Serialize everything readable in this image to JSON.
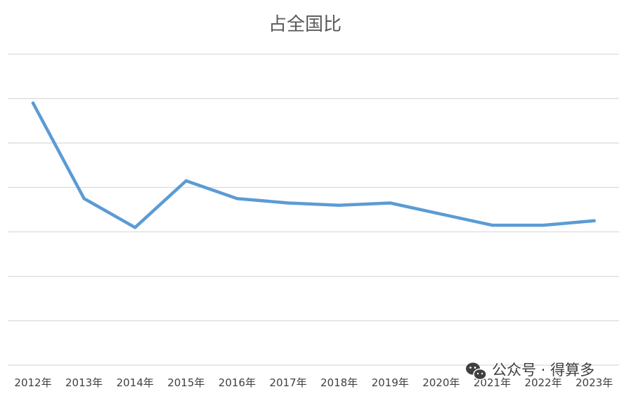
{
  "chart_data": {
    "type": "line",
    "title": "占全国比",
    "categories": [
      "2012年",
      "2013年",
      "2014年",
      "2015年",
      "2016年",
      "2017年",
      "2018年",
      "2019年",
      "2020年",
      "2021年",
      "2022年",
      "2023年"
    ],
    "series": [
      {
        "values": [
          5.9,
          3.75,
          3.1,
          4.15,
          3.75,
          3.65,
          3.6,
          3.65,
          3.4,
          3.15,
          3.15,
          3.25
        ]
      }
    ],
    "ylim": [
      0,
      7
    ],
    "y_ticks_visible": false,
    "gridlines": true,
    "legend": "none",
    "line_color": "#5b9bd5",
    "gridline_color": "#d9d9d9"
  },
  "watermark": {
    "text": "公众号 · 得算多",
    "icon": "wechat-icon"
  }
}
